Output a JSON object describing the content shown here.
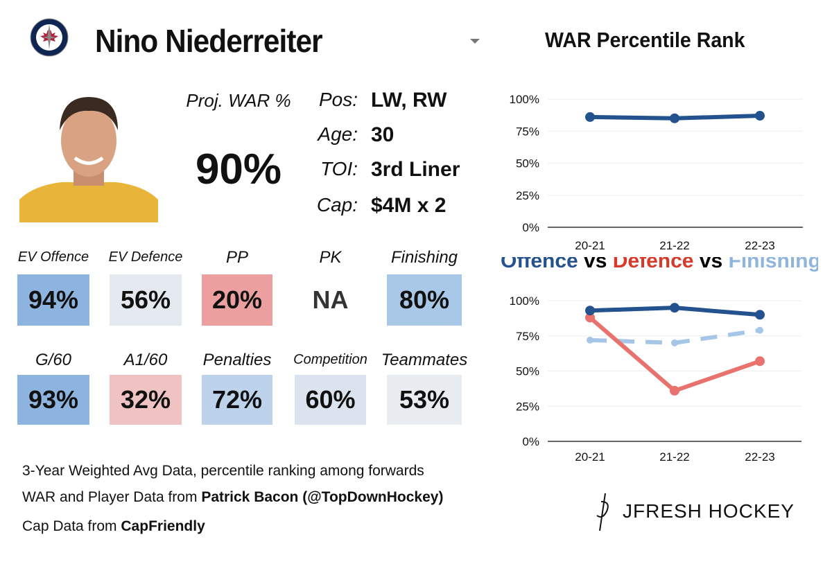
{
  "header": {
    "team_logo": "winnipeg-jets-logo",
    "player_name": "Nino Niederreiter",
    "chart_title": "WAR Percentile Rank"
  },
  "proj_war": {
    "label": "Proj. WAR %",
    "value": "90%",
    "color": "#8fb4dd"
  },
  "info": [
    {
      "k": "Pos:",
      "v": "LW, RW"
    },
    {
      "k": "Age:",
      "v": "30"
    },
    {
      "k": "TOI:",
      "v": "3rd Liner"
    },
    {
      "k": "Cap:",
      "v": "$4M x 2"
    }
  ],
  "tiles": [
    {
      "label": "EV Offence",
      "value": "94%",
      "color": "#8db3df"
    },
    {
      "label": "EV Defence",
      "value": "56%",
      "color": "#e4e8ef"
    },
    {
      "label": "PP",
      "value": "20%",
      "color": "#eba09f"
    },
    {
      "label": "PK",
      "value": "NA",
      "color": "#ffffff"
    },
    {
      "label": "Finishing",
      "value": "80%",
      "color": "#a9c7e7"
    },
    {
      "label": "G/60",
      "value": "93%",
      "color": "#8db3df"
    },
    {
      "label": "A1/60",
      "value": "32%",
      "color": "#f0c3c3"
    },
    {
      "label": "Penalties",
      "value": "72%",
      "color": "#bdd3ec"
    },
    {
      "label": "Competition",
      "value": "60%",
      "color": "#dbe3ee"
    },
    {
      "label": "Teammates",
      "value": "53%",
      "color": "#e9edf2"
    }
  ],
  "notes": {
    "line1": "3-Year Weighted Avg Data, percentile ranking among forwards",
    "line2_prefix": "WAR and Player Data from ",
    "line2_bold": "Patrick Bacon (@TopDownHockey)",
    "line3_prefix": "Cap Data from ",
    "line3_bold": "CapFriendly"
  },
  "brand": "JFRESH HOCKEY",
  "chart_data": [
    {
      "type": "line",
      "title": "WAR Percentile Rank",
      "categories": [
        "20-21",
        "21-22",
        "22-23"
      ],
      "ylim": [
        0,
        100
      ],
      "yticks": [
        "0%",
        "25%",
        "50%",
        "75%",
        "100%"
      ],
      "grid": true,
      "series": [
        {
          "values": [
            86,
            85,
            87
          ],
          "color": "#24528f",
          "dash": false
        }
      ]
    },
    {
      "type": "line",
      "title_parts": [
        {
          "t": "Offence",
          "c": "#24528f"
        },
        {
          "t": " vs ",
          "c": "#000000"
        },
        {
          "t": "Defence",
          "c": "#d83a2a"
        },
        {
          "t": " vs ",
          "c": "#000000"
        },
        {
          "t": "Finishing",
          "c": "#8fb4dd"
        }
      ],
      "categories": [
        "20-21",
        "21-22",
        "22-23"
      ],
      "ylim": [
        0,
        100
      ],
      "yticks": [
        "0%",
        "25%",
        "50%",
        "75%",
        "100%"
      ],
      "grid": true,
      "series": [
        {
          "name": "Offence",
          "values": [
            93,
            95,
            90
          ],
          "color": "#24528f",
          "dash": false
        },
        {
          "name": "Defence",
          "values": [
            88,
            36,
            57
          ],
          "color": "#e8736e",
          "dash": false
        },
        {
          "name": "Finishing",
          "values": [
            72,
            70,
            79
          ],
          "color": "#a6c6e8",
          "dash": true
        }
      ]
    }
  ]
}
